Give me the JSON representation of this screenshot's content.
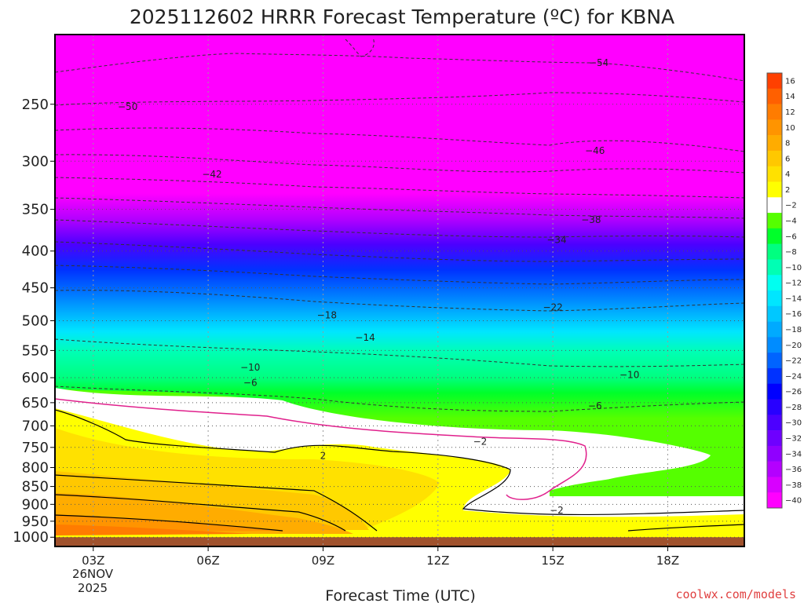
{
  "chart_data": {
    "type": "heatmap",
    "title": "2025112602 HRRR Forecast Temperature (ºC) for KBNA",
    "xlabel": "Forecast Time (UTC)",
    "ylabel": "",
    "x_ticks": [
      "03Z",
      "06Z",
      "09Z",
      "12Z",
      "15Z",
      "18Z"
    ],
    "x_tick_hours": [
      3,
      6,
      9,
      12,
      15,
      18
    ],
    "x_date_label": [
      "26NOV",
      "2025"
    ],
    "xlim_hours": [
      2,
      20
    ],
    "y_ticks": [
      250,
      300,
      350,
      400,
      450,
      500,
      550,
      600,
      650,
      700,
      750,
      800,
      850,
      900,
      950,
      1000
    ],
    "ylim_hpa": [
      1030,
      200
    ],
    "y_scale": "log-pressure (inverted)",
    "grid": true,
    "colorbar_levels": [
      16,
      14,
      12,
      10,
      8,
      6,
      4,
      2,
      -2,
      -4,
      -6,
      -8,
      -10,
      -12,
      -14,
      -16,
      -18,
      -20,
      -22,
      -24,
      -26,
      -28,
      -30,
      -32,
      -34,
      -36,
      -38,
      -40
    ],
    "colorbar_labels": [
      "16",
      "14",
      "12",
      "10",
      "8",
      "6",
      "4",
      "2",
      "−2",
      "−4",
      "−6",
      "−8",
      "−10",
      "−12",
      "−14",
      "−16",
      "−18",
      "−20",
      "−22",
      "−24",
      "−26",
      "−28",
      "−30",
      "−32",
      "−34",
      "−36",
      "−38",
      "−40"
    ],
    "colorbar_colors": [
      "#ff4000",
      "#ff6000",
      "#ff7c00",
      "#ff9400",
      "#ffac00",
      "#ffc800",
      "#ffe100",
      "#ffff00",
      "#ffffff",
      "#55ff00",
      "#00ff2a",
      "#00ff80",
      "#00ffb4",
      "#00fff0",
      "#00e6ff",
      "#00c8ff",
      "#00aaff",
      "#008cff",
      "#0064ff",
      "#0032ff",
      "#0000ff",
      "#2800ff",
      "#4c00ff",
      "#6e00ff",
      "#9000ff",
      "#b400ff",
      "#d800ff",
      "#ff00ff"
    ],
    "colorbar_position": "right",
    "surface_color": "#a0522d",
    "temperature_profiles_hour03": [
      {
        "hPa": 1000,
        "C": 14
      },
      {
        "hPa": 950,
        "C": 11
      },
      {
        "hPa": 900,
        "C": 9
      },
      {
        "hPa": 850,
        "C": 7
      },
      {
        "hPa": 800,
        "C": 4
      },
      {
        "hPa": 750,
        "C": 3
      },
      {
        "hPa": 700,
        "C": 2
      },
      {
        "hPa": 650,
        "C": -1
      },
      {
        "hPa": 600,
        "C": -6
      },
      {
        "hPa": 550,
        "C": -10
      },
      {
        "hPa": 500,
        "C": -16
      },
      {
        "hPa": 450,
        "C": -22
      },
      {
        "hPa": 400,
        "C": -28
      },
      {
        "hPa": 350,
        "C": -36
      },
      {
        "hPa": 300,
        "C": -42
      },
      {
        "hPa": 250,
        "C": -50
      }
    ],
    "contour_labels": [
      {
        "text": "−54",
        "hour": 16.2,
        "hPa": 219
      },
      {
        "text": "−50",
        "hour": 3.9,
        "hPa": 252
      },
      {
        "text": "−46",
        "hour": 16.1,
        "hPa": 290
      },
      {
        "text": "−42",
        "hour": 6.1,
        "hPa": 313
      },
      {
        "text": "−38",
        "hour": 16.0,
        "hPa": 362
      },
      {
        "text": "−34",
        "hour": 15.1,
        "hPa": 386
      },
      {
        "text": "−22",
        "hour": 15.0,
        "hPa": 479
      },
      {
        "text": "−18",
        "hour": 9.1,
        "hPa": 491
      },
      {
        "text": "−14",
        "hour": 10.1,
        "hPa": 528
      },
      {
        "text": "−10",
        "hour": 7.1,
        "hPa": 581
      },
      {
        "text": "−10",
        "hour": 17.0,
        "hPa": 595
      },
      {
        "text": "−6",
        "hour": 7.1,
        "hPa": 610
      },
      {
        "text": "−6",
        "hour": 16.1,
        "hPa": 657
      },
      {
        "text": "−2",
        "hour": 13.1,
        "hPa": 736
      },
      {
        "text": "2",
        "hour": 9.0,
        "hPa": 770
      },
      {
        "text": "−2",
        "hour": 15.1,
        "hPa": 918
      }
    ]
  },
  "credit": "coolwx.com/models"
}
